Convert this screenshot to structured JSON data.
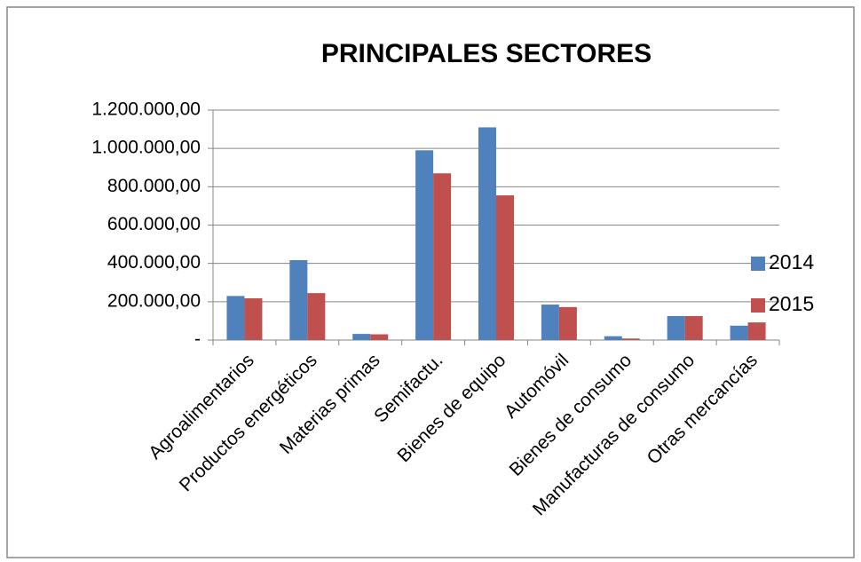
{
  "chart_data": {
    "type": "bar",
    "title": "PRINCIPALES SECTORES",
    "categories": [
      "Agroalimentarios",
      "Productos energéticos",
      "Materias primas",
      "Semifactu.",
      "Bienes de equipo",
      "Automóvil",
      "Bienes de consumo",
      "Manufacturas de consumo",
      "Otras mercancías"
    ],
    "series": [
      {
        "name": "2014",
        "color": "#4f81bd",
        "values": [
          230000,
          417000,
          32000,
          990000,
          1110000,
          185000,
          20000,
          125000,
          75000
        ]
      },
      {
        "name": "2015",
        "color": "#c0504d",
        "values": [
          218000,
          245000,
          30000,
          870000,
          755000,
          172000,
          8000,
          125000,
          92000
        ]
      }
    ],
    "ylim": [
      0,
      1200000
    ],
    "yticks": [
      {
        "value": 0,
        "label": "-"
      },
      {
        "value": 200000,
        "label": "200.000,00"
      },
      {
        "value": 400000,
        "label": "400.000,00"
      },
      {
        "value": 600000,
        "label": "600.000,00"
      },
      {
        "value": 800000,
        "label": "800.000,00"
      },
      {
        "value": 1000000,
        "label": "1.000.000,00"
      },
      {
        "value": 1200000,
        "label": "1.200.000,00"
      }
    ],
    "grid": true,
    "legend": "right"
  }
}
